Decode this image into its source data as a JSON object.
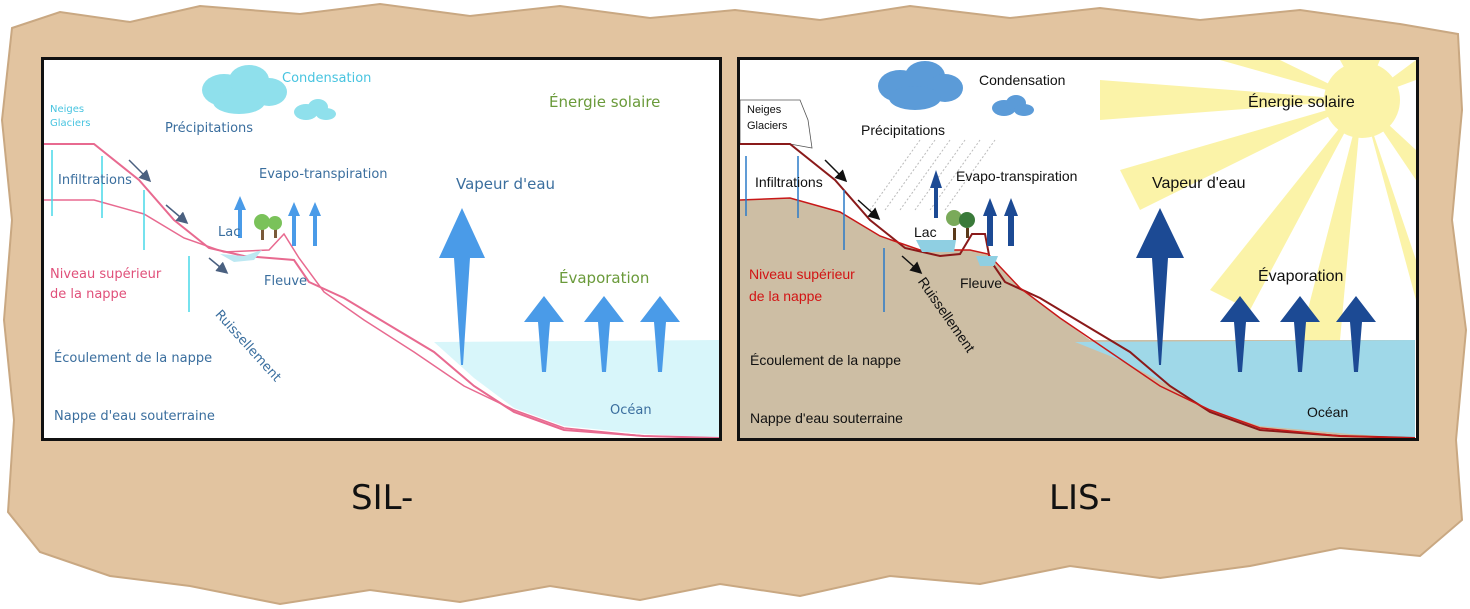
{
  "panels": {
    "left": {
      "caption": "SIL-",
      "labels": {
        "snow": "Neiges",
        "glaciers": "Glaciers",
        "condensation": "Condensation",
        "precipitation": "Précipitations",
        "solar": "Énergie solaire",
        "infiltration": "Infiltrations",
        "evapotranspiration": "Evapo-transpiration",
        "vapour": "Vapeur d'eau",
        "lake": "Lac",
        "river": "Fleuve",
        "water_table": "Niveau supérieur",
        "water_table_2": "de la nappe",
        "runoff": "Ruissellement",
        "evaporation": "Évaporation",
        "groundwater_flow": "Écoulement de la nappe",
        "aquifer": "Nappe d'eau souterraine",
        "ocean": "Océan"
      },
      "colors": {
        "ground_line": "#e86a90",
        "arrow": "#4a9be8",
        "ocean": "#d8f6fa",
        "cloud": "#8fe0ec",
        "text_blue": "#3a6e9e",
        "text_green": "#6a9a3a",
        "text_pink": "#e0507a"
      }
    },
    "right": {
      "caption": "LIS-",
      "labels": {
        "snow": "Neiges",
        "glaciers": "Glaciers",
        "condensation": "Condensation",
        "precipitation": "Précipitations",
        "solar": "Énergie solaire",
        "infiltration": "Infiltrations",
        "evapotranspiration": "Evapo-transpiration",
        "vapour": "Vapeur d'eau",
        "lake": "Lac",
        "river": "Fleuve",
        "water_table": "Niveau supérieur",
        "water_table_2": "de la nappe",
        "runoff": "Ruissellement",
        "evaporation": "Évaporation",
        "groundwater_flow": "Écoulement de la nappe",
        "aquifer": "Nappe d'eau souterraine",
        "ocean": "Océan"
      },
      "colors": {
        "ground_line": "#8a1a1a",
        "soil": "#cdbea4",
        "arrow": "#1c4a94",
        "ocean": "#9fd8e8",
        "cloud": "#5b9bd8",
        "sun_rays": "#fbf3a8",
        "text_red": "#d21414",
        "text_dark": "#111111"
      }
    }
  }
}
